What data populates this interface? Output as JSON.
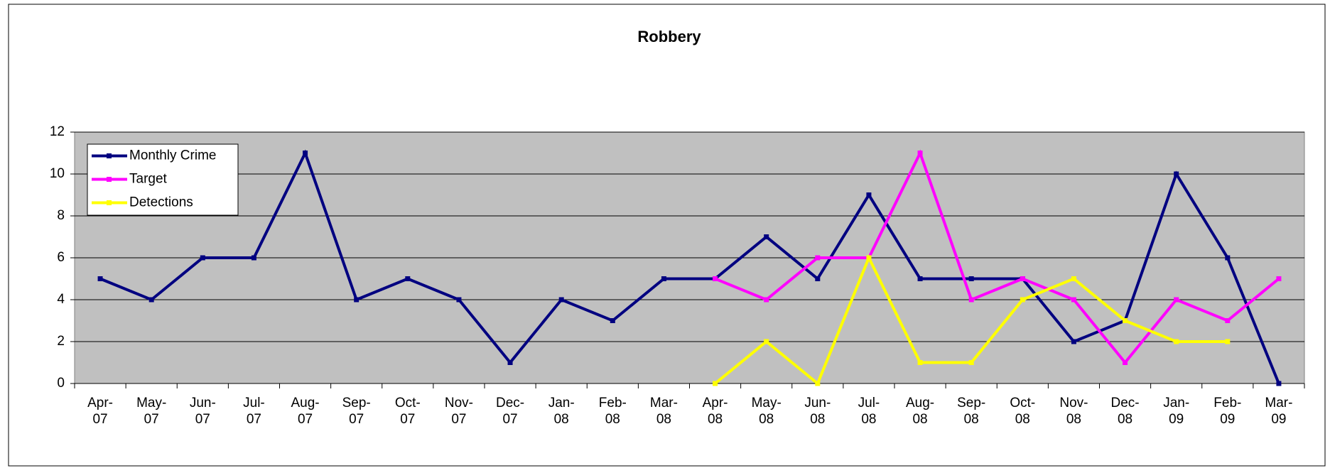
{
  "chart_data": {
    "type": "line",
    "title": "Robbery",
    "categories": [
      "Apr-07",
      "May-07",
      "Jun-07",
      "Jul-07",
      "Aug-07",
      "Sep-07",
      "Oct-07",
      "Nov-07",
      "Dec-07",
      "Jan-08",
      "Feb-08",
      "Mar-08",
      "Apr-08",
      "May-08",
      "Jun-08",
      "Jul-08",
      "Aug-08",
      "Sep-08",
      "Oct-08",
      "Nov-08",
      "Dec-08",
      "Jan-09",
      "Feb-09",
      "Mar-09"
    ],
    "series": [
      {
        "name": "Monthly Crime",
        "color": "#000080",
        "values": [
          5,
          4,
          6,
          6,
          11,
          4,
          5,
          4,
          1,
          4,
          3,
          5,
          5,
          7,
          5,
          9,
          5,
          5,
          5,
          2,
          3,
          10,
          6,
          0
        ]
      },
      {
        "name": "Target",
        "color": "#ff00ff",
        "values": [
          null,
          null,
          null,
          null,
          null,
          null,
          null,
          null,
          null,
          null,
          null,
          null,
          5,
          4,
          6,
          6,
          11,
          4,
          5,
          4,
          1,
          4,
          3,
          5
        ]
      },
      {
        "name": "Detections",
        "color": "#ffff00",
        "values": [
          null,
          null,
          null,
          null,
          null,
          null,
          null,
          null,
          null,
          null,
          null,
          null,
          0,
          2,
          0,
          6,
          1,
          1,
          4,
          5,
          3,
          2,
          2,
          null
        ]
      }
    ],
    "ylim": [
      0,
      12
    ],
    "yticks": [
      0,
      2,
      4,
      6,
      8,
      10,
      12
    ],
    "grid": true,
    "legend": "upper left"
  }
}
